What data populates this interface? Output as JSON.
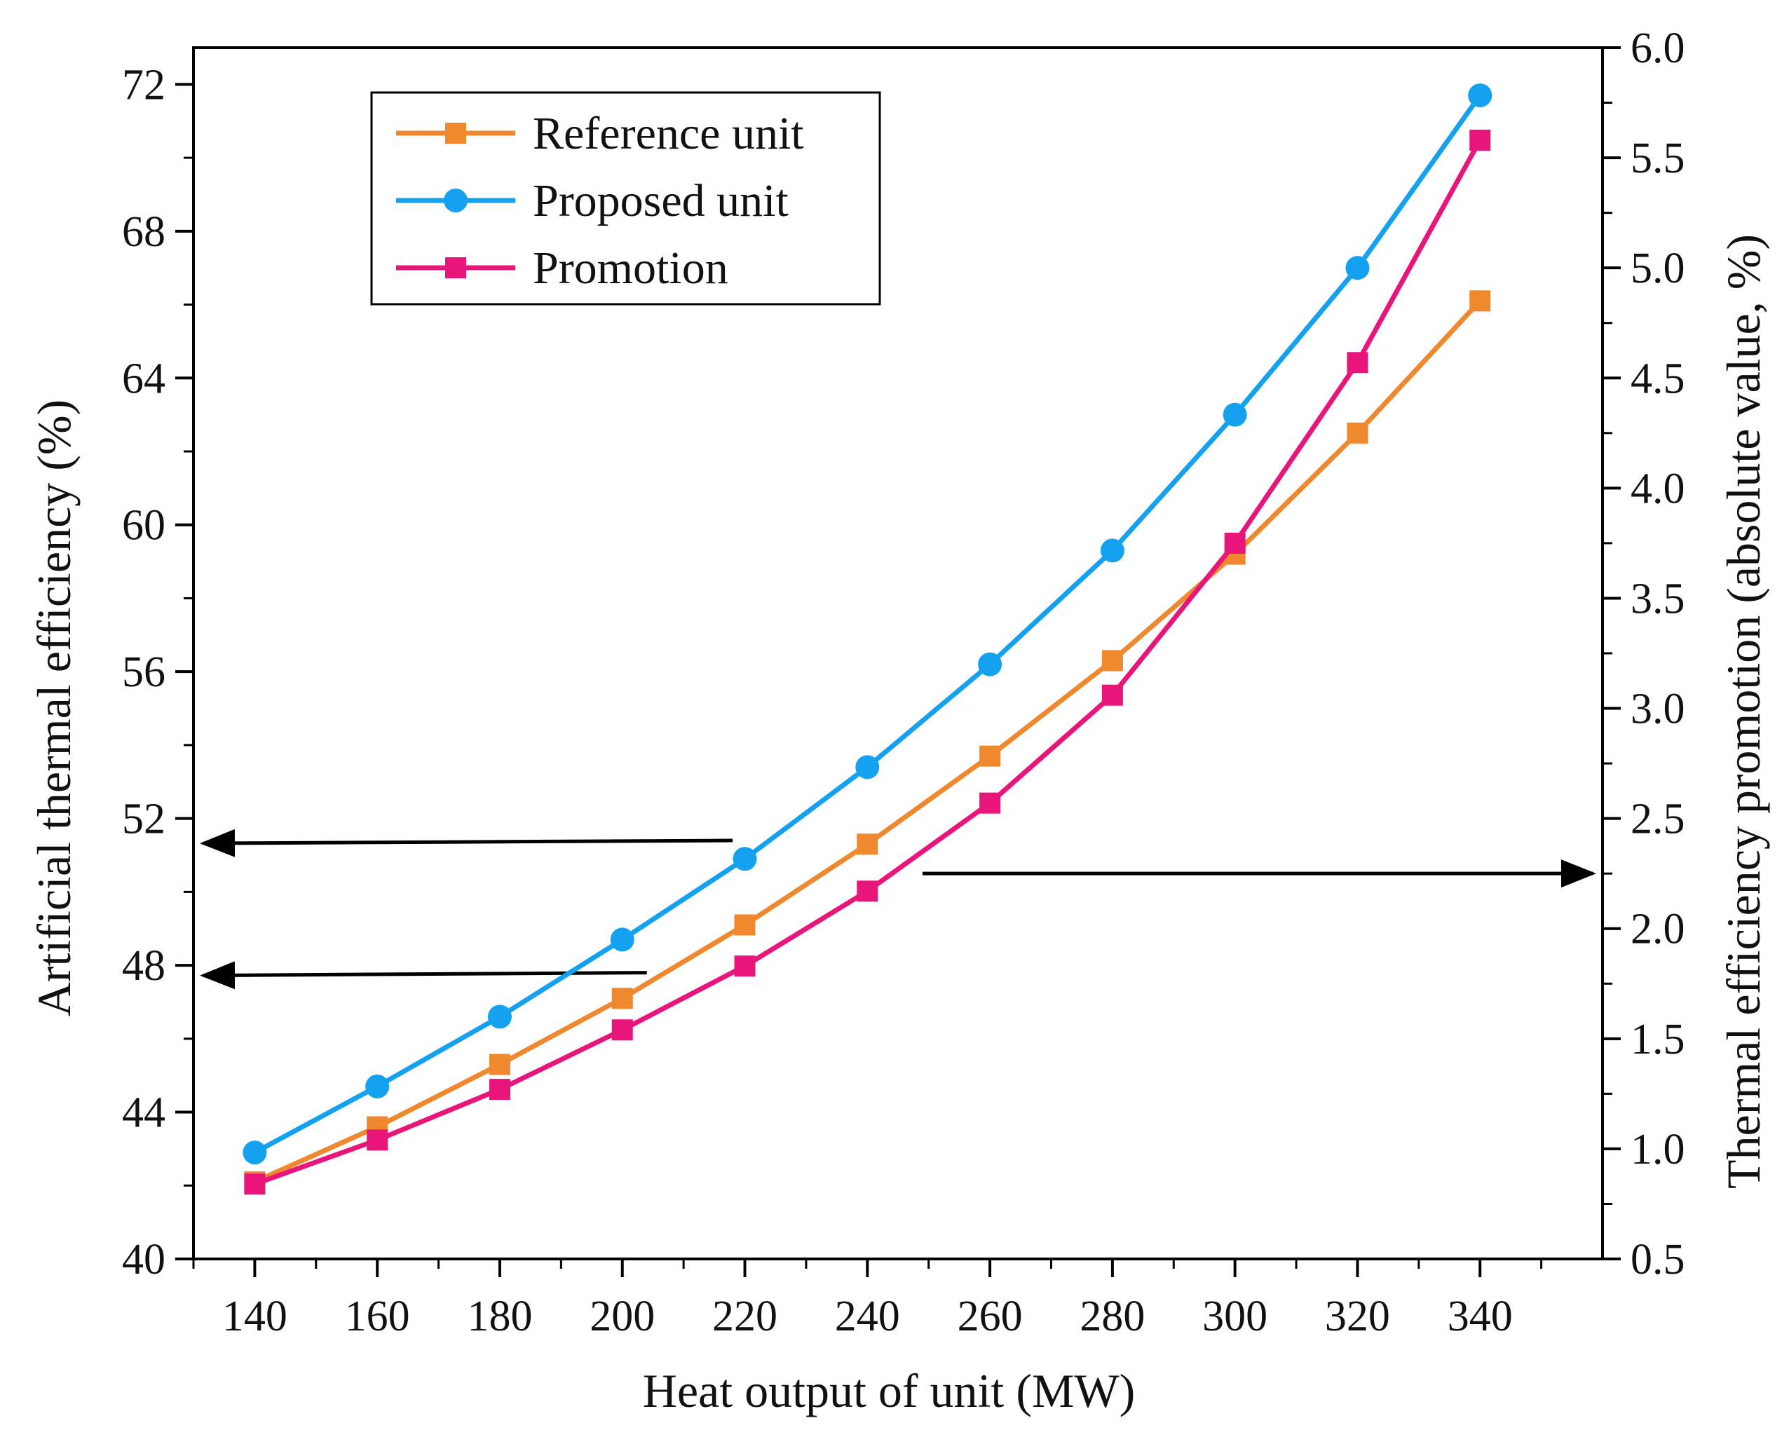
{
  "chart_data": {
    "type": "line",
    "xlabel": "Heat output of unit (MW)",
    "ylabel_left": "Artificial thermal efficiency (%)",
    "ylabel_right": "Thermal efficiency promotion (absolute value, %)",
    "x": [
      140,
      160,
      180,
      200,
      220,
      240,
      260,
      280,
      300,
      320,
      340
    ],
    "xlim": [
      130,
      360
    ],
    "xticks": [
      "140",
      "160",
      "180",
      "200",
      "220",
      "240",
      "260",
      "280",
      "300",
      "320",
      "340"
    ],
    "ylim_left": [
      40,
      73
    ],
    "yticks_left": [
      "40",
      "44",
      "48",
      "52",
      "56",
      "60",
      "64",
      "68",
      "72"
    ],
    "ylim_right": [
      0.5,
      6.0
    ],
    "yticks_right": [
      "0.5",
      "1.0",
      "1.5",
      "2.0",
      "2.5",
      "3.0",
      "3.5",
      "4.0",
      "4.5",
      "5.0",
      "5.5",
      "6.0"
    ],
    "grid": false,
    "legend_position": "top-left",
    "series": [
      {
        "name": "Reference unit",
        "axis": "left",
        "color": "#F0882E",
        "marker": "square",
        "values": [
          42.1,
          43.6,
          45.3,
          47.1,
          49.1,
          51.3,
          53.7,
          56.3,
          59.2,
          62.5,
          66.1
        ]
      },
      {
        "name": "Proposed unit",
        "axis": "left",
        "color": "#14A2F0",
        "marker": "circle",
        "values": [
          42.9,
          44.7,
          46.6,
          48.7,
          50.9,
          53.4,
          56.2,
          59.3,
          63.0,
          67.0,
          71.7
        ]
      },
      {
        "name": "Promotion",
        "axis": "right",
        "color": "#E8157A",
        "marker": "square",
        "values": [
          0.84,
          1.04,
          1.27,
          1.54,
          1.83,
          2.17,
          2.57,
          3.06,
          3.75,
          4.57,
          5.58
        ]
      }
    ],
    "annotations": [
      {
        "type": "arrow",
        "direction": "left",
        "axis": "left",
        "y": 51.4,
        "x_from": 218
      },
      {
        "type": "arrow",
        "direction": "left",
        "axis": "left",
        "y": 47.8,
        "x_from": 204
      },
      {
        "type": "arrow",
        "direction": "right",
        "axis": "right",
        "y": 2.25,
        "x_from": 249
      }
    ]
  }
}
